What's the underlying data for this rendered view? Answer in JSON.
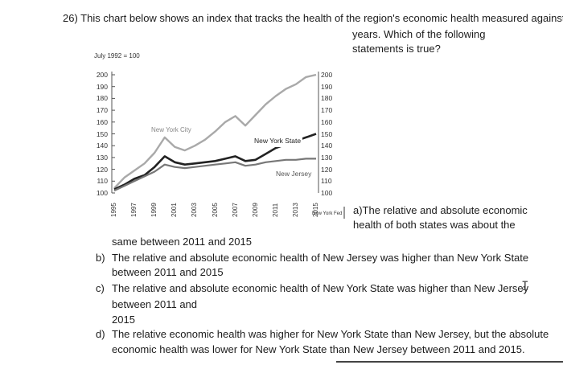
{
  "question": {
    "line1": "26) This chart below shows an index that tracks the health of the region's economic health measured against",
    "line2": "years.  Which of the following",
    "line3": "statements is true?"
  },
  "chart_data": {
    "type": "line",
    "title": "July 1992 = 100",
    "yticks": [
      200,
      190,
      180,
      170,
      160,
      150,
      140,
      130,
      120,
      110,
      100
    ],
    "ylim": [
      100,
      200
    ],
    "xticks": [
      "1995",
      "1997",
      "1999",
      "2001",
      "2003",
      "2005",
      "2007",
      "2009",
      "2011",
      "2013",
      "2015"
    ],
    "source": "New York Fed",
    "series": [
      {
        "name": "New York City",
        "color": "#a9a9a9",
        "width": 2.4,
        "x": [
          1995,
          1996,
          1997,
          1998,
          1999,
          2000,
          2001,
          2002,
          2003,
          2004,
          2005,
          2006,
          2007,
          2008,
          2009,
          2010,
          2011,
          2012,
          2013,
          2014,
          2015
        ],
        "y": [
          104,
          113,
          119,
          125,
          134,
          147,
          139,
          136,
          140,
          145,
          152,
          160,
          165,
          157,
          166,
          175,
          182,
          188,
          192,
          198,
          200
        ]
      },
      {
        "name": "New York State",
        "color": "#222222",
        "width": 2.6,
        "x": [
          1995,
          1996,
          1997,
          1998,
          1999,
          2000,
          2001,
          2002,
          2003,
          2004,
          2005,
          2006,
          2007,
          2008,
          2009,
          2010,
          2011,
          2012,
          2013,
          2014,
          2015
        ],
        "y": [
          103,
          107,
          112,
          115,
          122,
          131,
          126,
          124,
          125,
          126,
          127,
          129,
          131,
          127,
          128,
          133,
          138,
          141,
          144,
          147,
          150
        ]
      },
      {
        "name": "New Jersey",
        "color": "#777777",
        "width": 2.2,
        "x": [
          1995,
          1996,
          1997,
          1998,
          1999,
          2000,
          2001,
          2002,
          2003,
          2004,
          2005,
          2006,
          2007,
          2008,
          2009,
          2010,
          2011,
          2012,
          2013,
          2014,
          2015
        ],
        "y": [
          102,
          106,
          110,
          114,
          118,
          124,
          122,
          121,
          122,
          123,
          124,
          125,
          126,
          123,
          124,
          126,
          127,
          128,
          128,
          129,
          129
        ]
      }
    ],
    "labels": {
      "nyc": "New York City",
      "nys": "New York State",
      "nj": "New Jersey"
    }
  },
  "options": {
    "a_part1": "a)The relative and absolute economic",
    "a_part2": "health of both states was about the",
    "a_part3": "same between 2011 and 2015",
    "b_letter": "b)",
    "b_line1": "The relative and absolute economic health of New Jersey was higher than New York State",
    "b_line2": "between 2011 and 2015",
    "c_letter": "c)",
    "c_line1": "The relative and absolute economic health of New York State was higher than New Jersey",
    "c_line2": "between 2011 and",
    "c_line3": "2015",
    "d_letter": "d)",
    "d_line1": "The relative economic health was higher for New York State than New Jersey, but the absolute",
    "d_line2": "economic health was lower for New York State than New Jersey between 2011 and 2015."
  },
  "icons": {
    "text_cursor": "text-cursor-icon"
  }
}
